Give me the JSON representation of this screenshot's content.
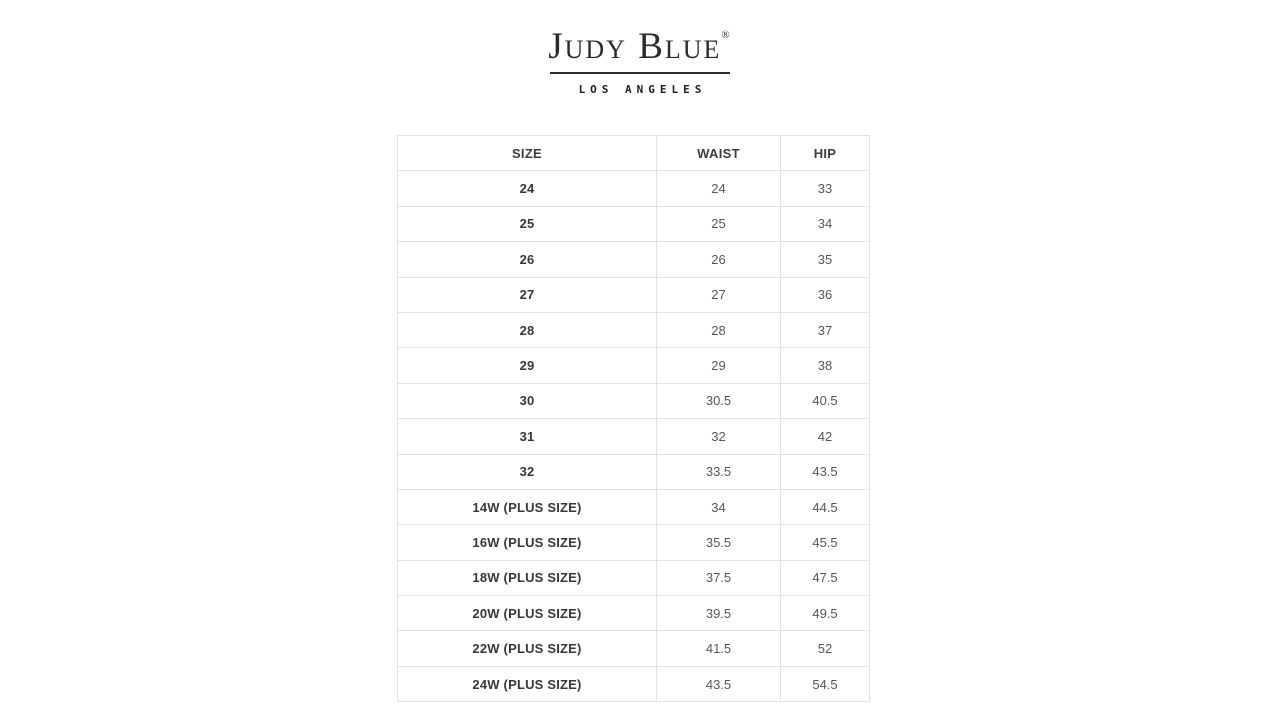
{
  "logo": {
    "brand": "Judy Blue",
    "registered": "®",
    "subtitle": "LOS ANGELES"
  },
  "size_chart": {
    "columns": [
      "SIZE",
      "WAIST",
      "HIP"
    ],
    "rows": [
      {
        "size": "24",
        "waist": "24",
        "hip": "33"
      },
      {
        "size": "25",
        "waist": "25",
        "hip": "34"
      },
      {
        "size": "26",
        "waist": "26",
        "hip": "35"
      },
      {
        "size": "27",
        "waist": "27",
        "hip": "36"
      },
      {
        "size": "28",
        "waist": "28",
        "hip": "37"
      },
      {
        "size": "29",
        "waist": "29",
        "hip": "38"
      },
      {
        "size": "30",
        "waist": "30.5",
        "hip": "40.5"
      },
      {
        "size": "31",
        "waist": "32",
        "hip": "42"
      },
      {
        "size": "32",
        "waist": "33.5",
        "hip": "43.5"
      },
      {
        "size": "14W (PLUS SIZE)",
        "waist": "34",
        "hip": "44.5"
      },
      {
        "size": "16W (PLUS SIZE)",
        "waist": "35.5",
        "hip": "45.5"
      },
      {
        "size": "18W (PLUS SIZE)",
        "waist": "37.5",
        "hip": "47.5"
      },
      {
        "size": "20W (PLUS SIZE)",
        "waist": "39.5",
        "hip": "49.5"
      },
      {
        "size": "22W (PLUS SIZE)",
        "waist": "41.5",
        "hip": "52"
      },
      {
        "size": "24W (PLUS SIZE)",
        "waist": "43.5",
        "hip": "54.5"
      }
    ]
  },
  "colors": {
    "text_dark": "#383838",
    "text_gray": "#565656",
    "border": "#e2e2e2",
    "logo_ink": "#2b2b2b"
  }
}
